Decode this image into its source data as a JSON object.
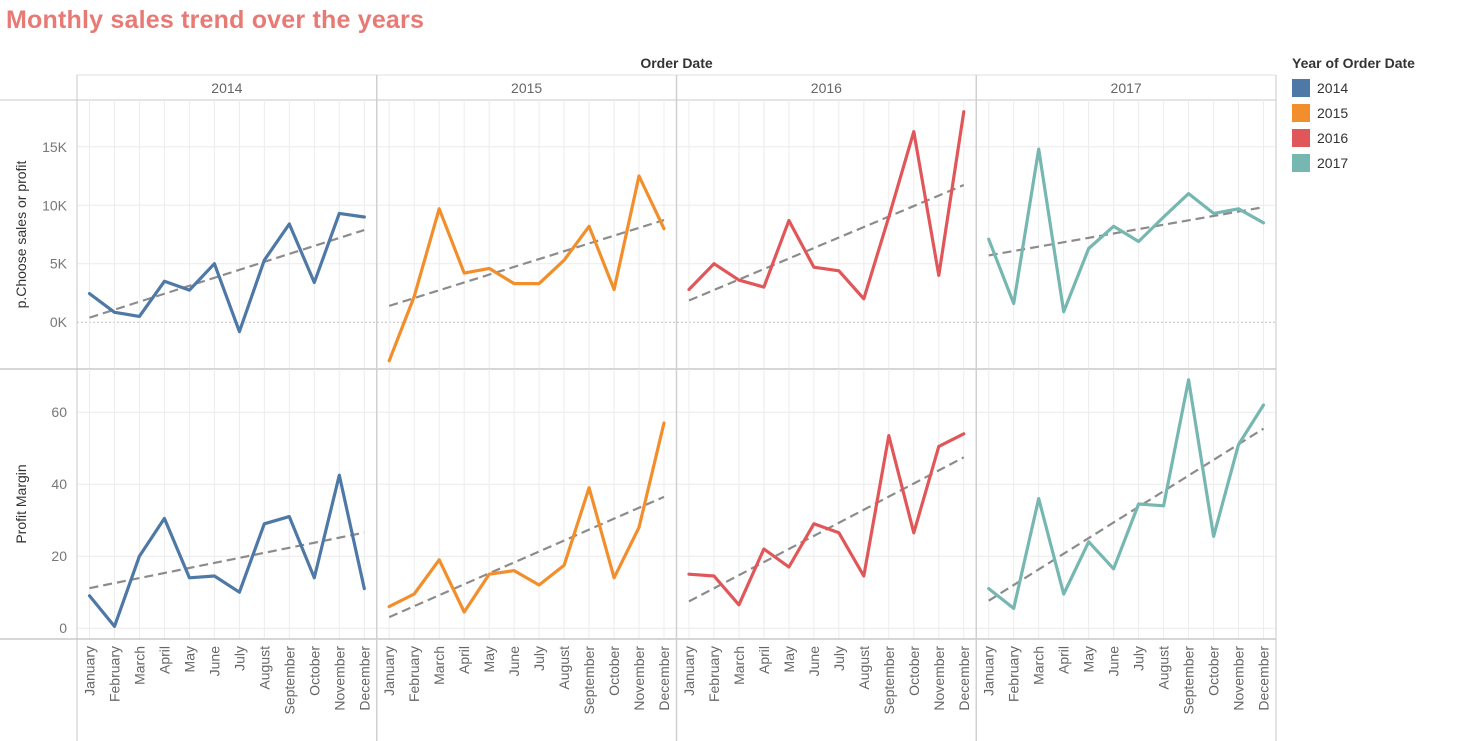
{
  "title": "Monthly sales trend over the years",
  "legend": {
    "title": "Year of Order Date",
    "items": [
      {
        "label": "2014",
        "color": "#4e79a7"
      },
      {
        "label": "2015",
        "color": "#f28e2b"
      },
      {
        "label": "2016",
        "color": "#e15759"
      },
      {
        "label": "2017",
        "color": "#76b7b2"
      }
    ]
  },
  "chart_data": {
    "type": "line",
    "column_header": "Order Date",
    "years": [
      "2014",
      "2015",
      "2016",
      "2017"
    ],
    "categories": [
      "January",
      "February",
      "March",
      "April",
      "May",
      "June",
      "July",
      "August",
      "September",
      "October",
      "November",
      "December"
    ],
    "trend_line": "dashed linear trend per year",
    "grid": true,
    "panels": [
      {
        "ylabel": "p.Choose sales or profit",
        "ylim": [
          -4000,
          19000
        ],
        "ticks": [
          0,
          5000,
          10000,
          15000
        ],
        "tick_labels": [
          "0K",
          "5K",
          "10K",
          "15K"
        ],
        "series": [
          {
            "name": "2014",
            "values": [
              2450,
              850,
              500,
              3500,
              2750,
              5000,
              -800,
              5300,
              8400,
              3400,
              9300,
              9000
            ]
          },
          {
            "name": "2015",
            "values": [
              -3300,
              2200,
              9700,
              4200,
              4600,
              3300,
              3300,
              5300,
              8200,
              2800,
              12500,
              8000
            ]
          },
          {
            "name": "2016",
            "values": [
              2800,
              5000,
              3600,
              3000,
              8700,
              4700,
              4400,
              2000,
              9000,
              16300,
              4000,
              18000
            ]
          },
          {
            "name": "2017",
            "values": [
              7100,
              1600,
              14800,
              900,
              6300,
              8200,
              6900,
              9000,
              11000,
              9300,
              9700,
              8500
            ]
          }
        ]
      },
      {
        "ylabel": "Profit Margin",
        "ylim": [
          -3,
          72
        ],
        "ticks": [
          0,
          20,
          40,
          60
        ],
        "tick_labels": [
          "0",
          "20",
          "40",
          "60"
        ],
        "series": [
          {
            "name": "2014",
            "values": [
              9,
              0.5,
              20,
              30.5,
              14,
              14.5,
              10,
              29,
              31,
              14,
              42.5,
              11
            ]
          },
          {
            "name": "2015",
            "values": [
              6,
              9.5,
              19,
              4.5,
              15,
              16,
              12,
              17.5,
              39,
              14,
              28,
              57
            ]
          },
          {
            "name": "2016",
            "values": [
              15,
              14.5,
              6.5,
              22,
              17,
              29,
              26.5,
              14.5,
              53.5,
              26.5,
              50.5,
              54
            ]
          },
          {
            "name": "2017",
            "values": [
              11,
              5.5,
              36,
              9.5,
              24,
              16.5,
              34.5,
              34,
              69,
              25.5,
              51,
              62
            ]
          }
        ]
      }
    ]
  }
}
